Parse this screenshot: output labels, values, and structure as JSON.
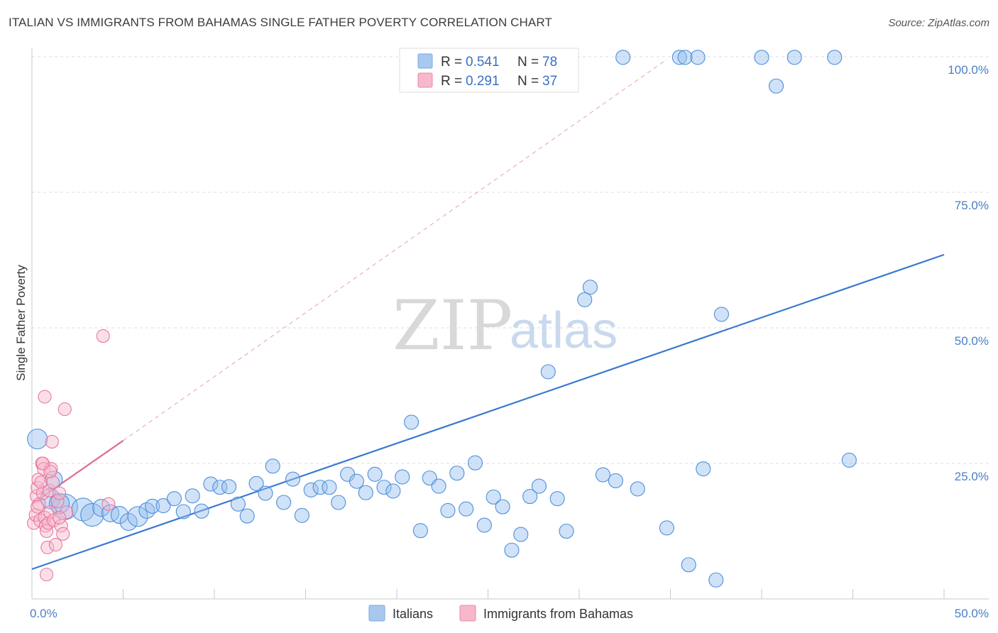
{
  "header": {
    "title": "ITALIAN VS IMMIGRANTS FROM BAHAMAS SINGLE FATHER POVERTY CORRELATION CHART",
    "source": "Source: ZipAtlas.com"
  },
  "watermark": {
    "zip": "ZIP",
    "atlas": "atlas"
  },
  "legend_top": [
    {
      "r_label": "R =",
      "r_value": "0.541",
      "n_label": "N =",
      "n_value": "78",
      "color": "#a8c8f0",
      "edge": "#7aa6df"
    },
    {
      "r_label": "R =",
      "r_value": "0.291",
      "n_label": "N =",
      "n_value": "37",
      "color": "#f7b8cc",
      "edge": "#e88aa8"
    }
  ],
  "legend_bottom": [
    {
      "label": "Italians",
      "color": "#a8c8f0",
      "edge": "#7aa6df"
    },
    {
      "label": "Immigrants from Bahamas",
      "color": "#f7b8cc",
      "edge": "#e88aa8"
    }
  ],
  "chart_data": {
    "type": "scatter",
    "ylabel": "Single Father Poverty",
    "xlim": [
      0,
      50
    ],
    "ylim": [
      0,
      100
    ],
    "x_ticks": [
      {
        "value": 0,
        "label": "0.0%"
      },
      {
        "value": 50,
        "label": "50.0%"
      }
    ],
    "y_ticks": [
      {
        "value": 25,
        "label": "25.0%"
      },
      {
        "value": 50,
        "label": "50.0%"
      },
      {
        "value": 75,
        "label": "75.0%"
      },
      {
        "value": 100,
        "label": "100.0%"
      }
    ],
    "grid": true,
    "legend_placement": "top-center",
    "series": [
      {
        "name": "Italians",
        "color": "#4d8fdb",
        "fill": "rgba(150,190,238,0.45)",
        "trend": {
          "x0": 0,
          "y0": 5.5,
          "x1": 50,
          "y1": 63.5,
          "dashed": false,
          "color": "#3a78d0"
        },
        "points": [
          [
            0.3,
            29.5,
            14
          ],
          [
            1.0,
            18.5,
            14
          ],
          [
            1.2,
            22.0,
            12
          ],
          [
            1.8,
            17.0,
            18
          ],
          [
            2.8,
            16.5,
            16
          ],
          [
            3.3,
            15.5,
            16
          ],
          [
            3.8,
            16.8,
            12
          ],
          [
            4.3,
            15.8,
            12
          ],
          [
            4.8,
            15.5,
            12
          ],
          [
            5.3,
            14.2,
            12
          ],
          [
            5.8,
            15.2,
            14
          ],
          [
            6.3,
            16.3,
            11
          ],
          [
            6.6,
            17.1,
            10
          ],
          [
            7.2,
            17.2,
            10
          ],
          [
            7.8,
            18.5,
            10
          ],
          [
            8.3,
            16.1,
            10
          ],
          [
            8.8,
            19.0,
            10
          ],
          [
            9.3,
            16.2,
            10
          ],
          [
            9.8,
            21.2,
            10
          ],
          [
            10.3,
            20.6,
            10
          ],
          [
            10.8,
            20.7,
            10
          ],
          [
            11.3,
            17.5,
            10
          ],
          [
            11.8,
            15.3,
            10
          ],
          [
            12.3,
            21.3,
            10
          ],
          [
            12.8,
            19.5,
            10
          ],
          [
            13.2,
            24.5,
            10
          ],
          [
            13.8,
            17.8,
            10
          ],
          [
            14.3,
            22.1,
            10
          ],
          [
            14.8,
            15.4,
            10
          ],
          [
            15.3,
            20.1,
            10
          ],
          [
            15.8,
            20.6,
            10
          ],
          [
            16.3,
            20.6,
            10
          ],
          [
            16.8,
            17.8,
            10
          ],
          [
            17.3,
            23.0,
            10
          ],
          [
            17.8,
            21.7,
            10
          ],
          [
            18.3,
            19.6,
            10
          ],
          [
            18.8,
            23.0,
            10
          ],
          [
            19.3,
            20.6,
            10
          ],
          [
            19.8,
            19.9,
            10
          ],
          [
            20.3,
            22.5,
            10
          ],
          [
            20.8,
            32.6,
            10
          ],
          [
            21.3,
            12.6,
            10
          ],
          [
            21.8,
            22.3,
            10
          ],
          [
            22.3,
            20.8,
            10
          ],
          [
            22.8,
            16.3,
            10
          ],
          [
            23.3,
            23.2,
            10
          ],
          [
            23.8,
            16.6,
            10
          ],
          [
            24.3,
            25.1,
            10
          ],
          [
            24.8,
            13.6,
            10
          ],
          [
            25.3,
            18.8,
            10
          ],
          [
            25.8,
            17.0,
            10
          ],
          [
            26.3,
            9.0,
            10
          ],
          [
            26.8,
            11.9,
            10
          ],
          [
            27.3,
            18.9,
            10
          ],
          [
            27.8,
            20.8,
            10
          ],
          [
            28.3,
            41.9,
            10
          ],
          [
            28.8,
            18.5,
            10
          ],
          [
            29.3,
            12.5,
            10
          ],
          [
            30.3,
            55.2,
            10
          ],
          [
            30.6,
            57.5,
            10
          ],
          [
            31.3,
            22.9,
            10
          ],
          [
            32.0,
            21.8,
            10
          ],
          [
            32.4,
            99.9,
            10
          ],
          [
            33.2,
            20.3,
            10
          ],
          [
            34.8,
            13.1,
            10
          ],
          [
            35.5,
            99.9,
            10
          ],
          [
            35.8,
            99.9,
            10
          ],
          [
            36.0,
            6.3,
            10
          ],
          [
            36.5,
            99.9,
            10
          ],
          [
            36.8,
            24.0,
            10
          ],
          [
            37.5,
            3.5,
            10
          ],
          [
            37.8,
            52.5,
            10
          ],
          [
            40.0,
            99.9,
            10
          ],
          [
            40.8,
            94.6,
            10
          ],
          [
            41.8,
            99.9,
            10
          ],
          [
            44.0,
            99.9,
            10
          ],
          [
            44.8,
            25.6,
            10
          ],
          [
            1.5,
            17.6,
            14
          ]
        ]
      },
      {
        "name": "Immigrants from Bahamas",
        "color": "#e8789e",
        "fill": "rgba(247,184,204,0.45)",
        "trend": {
          "x0": 0,
          "y0": 17.5,
          "x1": 5,
          "y1": 29.2,
          "x_ext": 34.8,
          "y_ext": 99.5,
          "dashed_ext": true,
          "color": "#e06a92"
        },
        "points": [
          [
            0.1,
            14.0,
            9
          ],
          [
            0.2,
            15.5,
            9
          ],
          [
            0.25,
            19.0,
            9
          ],
          [
            0.3,
            20.5,
            9
          ],
          [
            0.35,
            22.0,
            9
          ],
          [
            0.4,
            17.5,
            9
          ],
          [
            0.45,
            14.5,
            9
          ],
          [
            0.5,
            21.5,
            9
          ],
          [
            0.55,
            25.0,
            9
          ],
          [
            0.6,
            19.5,
            9
          ],
          [
            0.65,
            24.0,
            9
          ],
          [
            0.7,
            15.0,
            9
          ],
          [
            0.75,
            13.5,
            9
          ],
          [
            0.8,
            12.5,
            9
          ],
          [
            0.85,
            9.5,
            9
          ],
          [
            0.9,
            14.0,
            9
          ],
          [
            0.95,
            20.0,
            9
          ],
          [
            1.0,
            16.0,
            9
          ],
          [
            1.05,
            24.0,
            9
          ],
          [
            1.1,
            29.0,
            9
          ],
          [
            1.15,
            21.5,
            9
          ],
          [
            1.2,
            14.5,
            9
          ],
          [
            1.3,
            10.0,
            9
          ],
          [
            1.4,
            18.0,
            9
          ],
          [
            1.5,
            19.5,
            9
          ],
          [
            1.6,
            13.5,
            9
          ],
          [
            1.7,
            12.0,
            9
          ],
          [
            1.8,
            35.0,
            9
          ],
          [
            0.7,
            37.3,
            9
          ],
          [
            0.8,
            4.5,
            9
          ],
          [
            1.0,
            23.5,
            9
          ],
          [
            1.9,
            16.0,
            9
          ],
          [
            4.2,
            17.5,
            9
          ],
          [
            3.9,
            48.5,
            9
          ],
          [
            0.6,
            25.0,
            9
          ],
          [
            1.5,
            15.0,
            9
          ],
          [
            0.3,
            17.0,
            9
          ]
        ]
      }
    ]
  }
}
